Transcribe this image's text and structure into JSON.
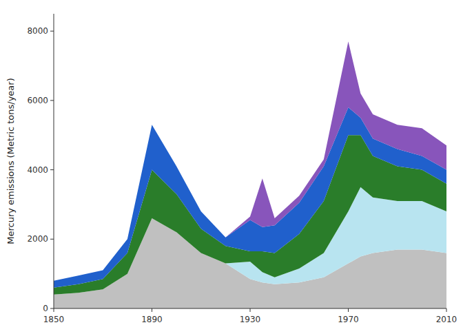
{
  "chart_data": {
    "type": "area",
    "stacked": true,
    "ylabel": "Mercury emissions (Metric tons/year)",
    "x": [
      1850,
      1860,
      1870,
      1880,
      1890,
      1900,
      1910,
      1920,
      1930,
      1935,
      1940,
      1950,
      1960,
      1970,
      1975,
      1980,
      1990,
      2000,
      2010
    ],
    "series": [
      {
        "color": "#c0c0c0",
        "values": [
          400,
          450,
          550,
          1000,
          2600,
          2200,
          1600,
          1300,
          850,
          750,
          700,
          750,
          900,
          1300,
          1500,
          1600,
          1700,
          1700,
          1600
        ]
      },
      {
        "color": "#b8e4f0",
        "values": [
          0,
          0,
          0,
          0,
          0,
          0,
          0,
          0,
          500,
          300,
          200,
          400,
          700,
          1500,
          2000,
          1600,
          1400,
          1400,
          1200
        ]
      },
      {
        "color": "#2a7d2a",
        "values": [
          200,
          250,
          300,
          600,
          1400,
          1100,
          700,
          500,
          300,
          600,
          700,
          1000,
          1500,
          2200,
          1500,
          1200,
          1000,
          900,
          800
        ]
      },
      {
        "color": "#2060cc",
        "values": [
          200,
          250,
          250,
          400,
          1300,
          800,
          500,
          250,
          900,
          700,
          800,
          900,
          1000,
          800,
          500,
          500,
          500,
          400,
          400
        ]
      },
      {
        "color": "#8855bb",
        "values": [
          0,
          0,
          0,
          0,
          0,
          0,
          0,
          0,
          100,
          1400,
          200,
          200,
          200,
          1900,
          700,
          700,
          700,
          800,
          700
        ]
      }
    ],
    "xlim": [
      1850,
      2010
    ],
    "ylim": [
      0,
      8500
    ],
    "xticks": [
      1850,
      1890,
      1930,
      1970,
      2010
    ],
    "yticks": [
      0,
      2000,
      4000,
      6000,
      8000
    ],
    "grid": false
  }
}
